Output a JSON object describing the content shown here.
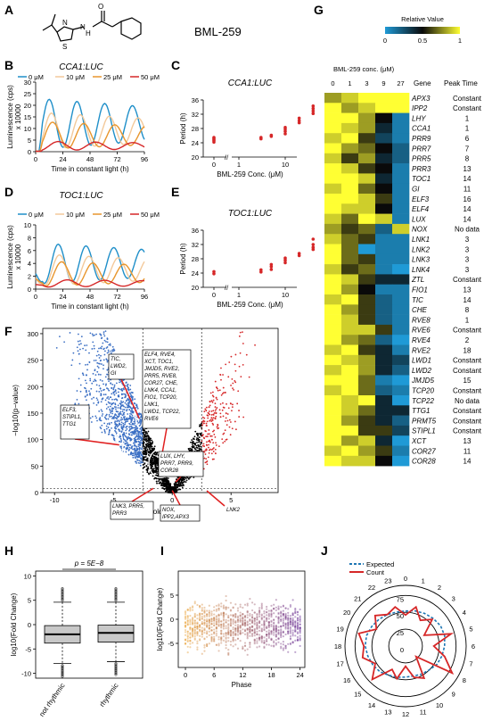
{
  "panel_labels": [
    "A",
    "B",
    "C",
    "D",
    "E",
    "F",
    "G",
    "H",
    "I",
    "J"
  ],
  "panel_a": {
    "compound_name": "BML-259"
  },
  "panel_b": {
    "title": "CCA1:LUC",
    "ylabel": "Luminescence (cps)",
    "yscale_note": "x 10000",
    "xlabel": "Time in constant light (h)",
    "legend": [
      "0 μM",
      "10 μM",
      "25 μM",
      "50 μM"
    ],
    "colors": [
      "#1f8fc9",
      "#f3c99a",
      "#e8962d",
      "#d62728"
    ]
  },
  "panel_c": {
    "title": "CCA1:LUC",
    "ylabel": "Period (h)",
    "xlabel": "BML-259 Conc. (μM)"
  },
  "panel_d": {
    "title": "TOC1:LUC",
    "ylabel": "Luminescence (cps)",
    "yscale_note": "x 10000",
    "xlabel": "Time in constant light (h)",
    "legend": [
      "0 μM",
      "10 μM",
      "25 μM",
      "50 μM"
    ]
  },
  "panel_e": {
    "title": "TOC1:LUC",
    "ylabel": "Period (h)",
    "xlabel": "BML-259 Conc. (μM)"
  },
  "panel_f": {
    "ylabel": "−log10(p−value)",
    "xlabel": "log10(Fold Change)",
    "annotations": [
      "ELF3, STIPL1, TTG1",
      "TIC, LWD2, GI",
      "ELF4, RVE4, XCT, TOC1, JMJD5, RVE2, PRR5, RVE8, COR27, CHE, LNK4, CCA1, FIO1, TCP20, LNK1, TCP22, LWD1, RVE6",
      "LUX, LHY, PRR7, PRR9, COR28",
      "LNK3, PRR5, PRR3",
      "NOX, IPP2, APX3",
      "LNK2"
    ]
  },
  "panel_g": {
    "colorbar_title": "Relative Value",
    "colorbar_ticks": [
      "0",
      "0.5",
      "1"
    ],
    "conc_title": "BML-259 conc. (μM)",
    "concs": [
      "0",
      "1",
      "3",
      "9",
      "27"
    ],
    "gene_header": "Gene",
    "peak_header": "Peak Time",
    "genes": [
      {
        "gene": "APX3",
        "peak": "Constant"
      },
      {
        "gene": "IPP2",
        "peak": "Constant"
      },
      {
        "gene": "LHY",
        "peak": "1"
      },
      {
        "gene": "CCA1",
        "peak": "1"
      },
      {
        "gene": "PRR9",
        "peak": "6"
      },
      {
        "gene": "PRR7",
        "peak": "7"
      },
      {
        "gene": "PRR5",
        "peak": "8"
      },
      {
        "gene": "PRR3",
        "peak": "13"
      },
      {
        "gene": "TOC1",
        "peak": "14"
      },
      {
        "gene": "GI",
        "peak": "11"
      },
      {
        "gene": "ELF3",
        "peak": "16"
      },
      {
        "gene": "ELF4",
        "peak": "14"
      },
      {
        "gene": "LUX",
        "peak": "14"
      },
      {
        "gene": "NOX",
        "peak": "No data"
      },
      {
        "gene": "LNK1",
        "peak": "3"
      },
      {
        "gene": "LNK2",
        "peak": "3"
      },
      {
        "gene": "LNK3",
        "peak": "3"
      },
      {
        "gene": "LNK4",
        "peak": "3"
      },
      {
        "gene": "ZTL",
        "peak": "Constant"
      },
      {
        "gene": "FIO1",
        "peak": "13"
      },
      {
        "gene": "TIC",
        "peak": "14"
      },
      {
        "gene": "CHE",
        "peak": "8"
      },
      {
        "gene": "RVE8",
        "peak": "1"
      },
      {
        "gene": "RVE6",
        "peak": "Constant"
      },
      {
        "gene": "RVE4",
        "peak": "2"
      },
      {
        "gene": "RVE2",
        "peak": "18"
      },
      {
        "gene": "LWD1",
        "peak": "Constant"
      },
      {
        "gene": "LWD2",
        "peak": "Constant"
      },
      {
        "gene": "JMJD5",
        "peak": "15"
      },
      {
        "gene": "TCP20",
        "peak": "Constant"
      },
      {
        "gene": "TCP22",
        "peak": "No data"
      },
      {
        "gene": "TTG1",
        "peak": "Constant"
      },
      {
        "gene": "PRMT5",
        "peak": "Constant"
      },
      {
        "gene": "STIPL1",
        "peak": "Constant"
      },
      {
        "gene": "XCT",
        "peak": "13"
      },
      {
        "gene": "COR27",
        "peak": "11"
      },
      {
        "gene": "COR28",
        "peak": "14"
      }
    ]
  },
  "panel_h": {
    "pvalue_text": "p = 5E−8",
    "ylabel": "log10(Fold Change)",
    "categories": [
      "not rhythmic",
      "rhythmic"
    ]
  },
  "panel_i": {
    "ylabel": "log10(Fold Change)",
    "xlabel": "Phase"
  },
  "panel_j": {
    "legend": [
      "Expected",
      "Count"
    ],
    "colors": [
      "#1f77b4",
      "#d62728"
    ]
  },
  "chart_data": [
    {
      "type": "line",
      "panel": "B",
      "title": "CCA1:LUC",
      "xlabel": "Time in constant light (h)",
      "ylabel": "Luminescence (cps) x 10000",
      "xlim": [
        0,
        96
      ],
      "ylim": [
        0,
        30
      ],
      "xticks": [
        0,
        24,
        48,
        72,
        96
      ],
      "yticks": [
        0,
        5,
        10,
        15,
        20,
        25,
        30
      ],
      "series": [
        {
          "name": "0 μM",
          "period": 24.5,
          "amp": 11,
          "base": 12,
          "peak_t": 12
        },
        {
          "name": "10 μM",
          "period": 25.5,
          "amp": 8,
          "base": 9,
          "peak_t": 14
        },
        {
          "name": "25 μM",
          "period": 27.5,
          "amp": 6,
          "base": 7,
          "peak_t": 15
        },
        {
          "name": "50 μM",
          "period": 33,
          "amp": 2,
          "base": 2.5,
          "peak_t": 20
        }
      ]
    },
    {
      "type": "scatter",
      "panel": "C",
      "title": "CCA1:LUC",
      "xlabel": "BML-259 Conc. (μM)",
      "ylabel": "Period (h)",
      "ylim": [
        20,
        36
      ],
      "xscale": "log",
      "xticks": [
        0,
        1,
        10
      ],
      "yticks": [
        20,
        24,
        28,
        32,
        36
      ],
      "points": [
        [
          0,
          24.2
        ],
        [
          0,
          24.6
        ],
        [
          0,
          24.9
        ],
        [
          0,
          25.2
        ],
        [
          0,
          25.5
        ],
        [
          3,
          25.1
        ],
        [
          3,
          25.5
        ],
        [
          5,
          25.8
        ],
        [
          5,
          26.1
        ],
        [
          10,
          26.5
        ],
        [
          10,
          27.2
        ],
        [
          10,
          27.8
        ],
        [
          10,
          28.3
        ],
        [
          20,
          29.6
        ],
        [
          20,
          30.2
        ],
        [
          20,
          30.9
        ],
        [
          40,
          32.2
        ],
        [
          40,
          32.9
        ],
        [
          40,
          33.6
        ],
        [
          40,
          34.3
        ]
      ]
    },
    {
      "type": "line",
      "panel": "D",
      "title": "TOC1:LUC",
      "xlabel": "Time in constant light (h)",
      "ylabel": "Luminescence (cps) x 10000",
      "xlim": [
        0,
        96
      ],
      "ylim": [
        0,
        10
      ],
      "xticks": [
        0,
        24,
        48,
        72,
        96
      ],
      "yticks": [
        0,
        2,
        4,
        6,
        8,
        10
      ],
      "series": [
        {
          "name": "0 μM",
          "period": 24.5,
          "amp": 3.2,
          "base": 4.0,
          "peak_t": 20
        },
        {
          "name": "10 μM",
          "period": 26,
          "amp": 2.5,
          "base": 3.0,
          "peak_t": 21
        },
        {
          "name": "25 μM",
          "period": 27.5,
          "amp": 2.0,
          "base": 2.4,
          "peak_t": 23
        },
        {
          "name": "50 μM",
          "period": 33,
          "amp": 0.6,
          "base": 0.9,
          "peak_t": 28
        }
      ]
    },
    {
      "type": "scatter",
      "panel": "E",
      "title": "TOC1:LUC",
      "xlabel": "BML-259 Conc. (μM)",
      "ylabel": "Period (h)",
      "ylim": [
        20,
        36
      ],
      "xscale": "log",
      "xticks": [
        0,
        1,
        10
      ],
      "yticks": [
        20,
        24,
        28,
        32,
        36
      ],
      "points": [
        [
          0,
          23.8
        ],
        [
          0,
          24.4
        ],
        [
          3,
          24.3
        ],
        [
          3,
          24.9
        ],
        [
          5,
          25.0
        ],
        [
          5,
          25.8
        ],
        [
          5,
          26.4
        ],
        [
          10,
          26.9
        ],
        [
          10,
          27.6
        ],
        [
          10,
          28.2
        ],
        [
          20,
          28.9
        ],
        [
          20,
          29.5
        ],
        [
          40,
          30.6
        ],
        [
          40,
          31.2
        ],
        [
          40,
          32.0
        ],
        [
          40,
          33.5
        ]
      ]
    },
    {
      "type": "scatter",
      "panel": "F",
      "xlabel": "log10(Fold Change)",
      "ylabel": "−log10(p−value)",
      "xlim": [
        -11,
        9
      ],
      "ylim": [
        0,
        310
      ],
      "xticks": [
        -10,
        -5,
        0,
        5
      ],
      "yticks": [
        0,
        50,
        100,
        150,
        200,
        250,
        300
      ],
      "thresholds_x": [
        -2.5,
        2.5
      ]
    },
    {
      "type": "heatmap",
      "panel": "G",
      "columns": [
        "0",
        "1",
        "3",
        "9",
        "27"
      ],
      "rows": [
        "APX3",
        "IPP2",
        "LHY",
        "CCA1",
        "PRR9",
        "PRR7",
        "PRR5",
        "PRR3",
        "TOC1",
        "GI",
        "ELF3",
        "ELF4",
        "LUX",
        "NOX",
        "LNK1",
        "LNK2",
        "LNK3",
        "LNK4",
        "ZTL",
        "FIO1",
        "TIC",
        "CHE",
        "RVE8",
        "RVE6",
        "RVE4",
        "RVE2",
        "LWD1",
        "LWD2",
        "JMJD5",
        "TCP20",
        "TCP22",
        "TTG1",
        "PRMT5",
        "STIPL1",
        "XCT",
        "COR27",
        "COR28"
      ],
      "values": [
        [
          0.8,
          0.9,
          1.0,
          1.0,
          1.0
        ],
        [
          1.0,
          0.8,
          0.9,
          1.0,
          1.0
        ],
        [
          1.0,
          1.0,
          0.8,
          0.5,
          0.1
        ],
        [
          1.0,
          0.9,
          0.8,
          0.4,
          0.1
        ],
        [
          0.9,
          1.0,
          0.6,
          0.3,
          0.1
        ],
        [
          1.0,
          0.8,
          0.7,
          0.5,
          0.2
        ],
        [
          0.9,
          0.6,
          0.8,
          0.4,
          0.2
        ],
        [
          1.0,
          0.9,
          0.6,
          0.5,
          0.1
        ],
        [
          1.0,
          1.0,
          0.9,
          0.4,
          0.1
        ],
        [
          0.9,
          1.0,
          0.7,
          0.5,
          0.1
        ],
        [
          1.0,
          1.0,
          0.9,
          0.6,
          0.1
        ],
        [
          1.0,
          0.9,
          0.9,
          0.5,
          0.1
        ],
        [
          0.9,
          0.7,
          1.0,
          0.9,
          0.1
        ],
        [
          0.8,
          0.6,
          0.7,
          0.2,
          0.9
        ],
        [
          0.9,
          0.7,
          0.6,
          0.1,
          0.1
        ],
        [
          1.0,
          0.7,
          0.0,
          0.1,
          0.1
        ],
        [
          1.0,
          0.7,
          0.6,
          0.1,
          0.1
        ],
        [
          0.9,
          0.6,
          0.7,
          0.1,
          0.0
        ],
        [
          1.0,
          0.9,
          0.6,
          0.4,
          0.4
        ],
        [
          1.0,
          0.8,
          0.5,
          0.1,
          0.1
        ],
        [
          0.9,
          1.0,
          0.6,
          0.2,
          0.1
        ],
        [
          1.0,
          0.8,
          0.6,
          0.2,
          0.1
        ],
        [
          1.0,
          0.9,
          0.6,
          0.2,
          0.1
        ],
        [
          1.0,
          0.9,
          0.9,
          0.6,
          0.1
        ],
        [
          1.0,
          0.8,
          0.7,
          0.2,
          0.0
        ],
        [
          0.9,
          1.0,
          0.6,
          0.4,
          0.1
        ],
        [
          1.0,
          0.9,
          0.8,
          0.4,
          0.3
        ],
        [
          0.9,
          1.0,
          0.8,
          0.4,
          0.2
        ],
        [
          1.0,
          1.0,
          0.7,
          0.1,
          0.0
        ],
        [
          0.9,
          1.0,
          0.7,
          0.2,
          0.1
        ],
        [
          1.0,
          0.9,
          1.0,
          0.4,
          0.0
        ],
        [
          1.0,
          0.9,
          0.7,
          0.4,
          0.4
        ],
        [
          1.0,
          0.8,
          0.6,
          0.4,
          0.2
        ],
        [
          1.0,
          1.0,
          0.6,
          0.6,
          0.3
        ],
        [
          1.0,
          0.8,
          0.9,
          0.4,
          0.0
        ],
        [
          0.9,
          1.0,
          0.8,
          0.6,
          0.1
        ],
        [
          1.0,
          0.9,
          0.9,
          0.5,
          0.0
        ]
      ]
    },
    {
      "type": "bar",
      "subtype": "boxplot",
      "panel": "H",
      "categories": [
        "not rhythmic",
        "rhythmic"
      ],
      "ylabel": "log10(Fold Change)",
      "ylim": [
        -11,
        11
      ],
      "yticks": [
        -10,
        -5,
        0,
        5,
        10
      ],
      "boxes": [
        {
          "name": "not rhythmic",
          "q1": -3.8,
          "median": -2.0,
          "q3": -0.2,
          "whisker_low": -8.0,
          "whisker_high": 4.6
        },
        {
          "name": "rhythmic",
          "q1": -3.6,
          "median": -1.7,
          "q3": -0.1,
          "whisker_low": -7.6,
          "whisker_high": 4.6
        }
      ]
    },
    {
      "type": "scatter",
      "panel": "I",
      "xlabel": "Phase",
      "ylabel": "log10(Fold Change)",
      "xlim": [
        -1.5,
        25
      ],
      "ylim": [
        -10,
        10
      ],
      "xticks": [
        0,
        6,
        12,
        18,
        24
      ],
      "yticks": [
        -5,
        0,
        5
      ]
    },
    {
      "type": "line",
      "subtype": "polar",
      "panel": "J",
      "angular_ticks": [
        "0",
        "1",
        "2",
        "3",
        "4",
        "5",
        "6",
        "7",
        "8",
        "9",
        "10",
        "11",
        "12",
        "13",
        "14",
        "15",
        "16",
        "17",
        "18",
        "19",
        "20",
        "21",
        "22",
        "23"
      ],
      "radial_ticks": [
        0,
        25,
        50,
        75
      ],
      "series": [
        {
          "name": "Expected",
          "values": [
            52,
            54,
            56,
            58,
            60,
            60,
            58,
            56,
            54,
            50,
            48,
            46,
            46,
            48,
            50,
            54,
            56,
            58,
            60,
            60,
            58,
            56,
            54,
            52
          ]
        },
        {
          "name": "Count",
          "values": [
            46,
            60,
            44,
            56,
            32,
            70,
            42,
            60,
            80,
            22,
            55,
            48,
            30,
            50,
            40,
            70,
            52,
            66,
            62,
            72,
            50,
            64,
            54,
            60
          ]
        }
      ]
    }
  ]
}
